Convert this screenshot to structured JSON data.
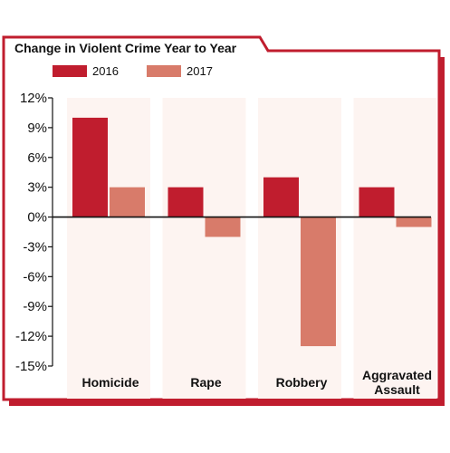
{
  "chart_data": {
    "type": "bar",
    "title": "Change in Violent Crime Year to Year",
    "categories": [
      [
        "Homicide"
      ],
      [
        "Rape"
      ],
      [
        "Robbery"
      ],
      [
        "Aggravated",
        "Assault"
      ]
    ],
    "series": [
      {
        "name": "2016",
        "values": [
          10,
          3,
          4,
          3
        ]
      },
      {
        "name": "2017",
        "values": [
          3,
          -2,
          -13,
          -1
        ]
      }
    ],
    "ylim": [
      -15,
      12
    ],
    "ytick_labels": [
      "12%",
      "9%",
      "6%",
      "3%",
      "0%",
      "-3%",
      "-6%",
      "-9%",
      "-12%",
      "-15%"
    ],
    "legend_position": "top-left",
    "grid": false,
    "colors": {
      "frame": "#c01d2e",
      "series_2016": "#c01d2e",
      "series_2017": "#d87b6a",
      "category_bg": "#fdf4f1",
      "axis": "#111111"
    }
  }
}
